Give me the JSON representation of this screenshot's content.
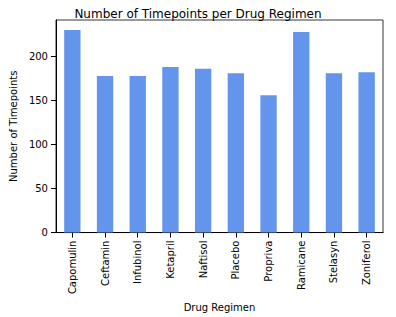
{
  "chart_data": {
    "type": "bar",
    "title": "Number of Timepoints per Drug Regimen",
    "x_label": "Drug Regimen",
    "y_label": "Number of Timepoints",
    "categories": [
      "Capomulin",
      "Ceftamin",
      "Infubinol",
      "Ketapril",
      "Naftisol",
      "Placebo",
      "Propriva",
      "Ramicane",
      "Stelasyn",
      "Zoniferol"
    ],
    "values": [
      230,
      178,
      178,
      188,
      186,
      181,
      156,
      228,
      181,
      182
    ],
    "color": "#6495ed",
    "ylim": [
      0,
      241.5
    ],
    "yticks": [
      0,
      50,
      100,
      150,
      200
    ],
    "grid": false
  }
}
